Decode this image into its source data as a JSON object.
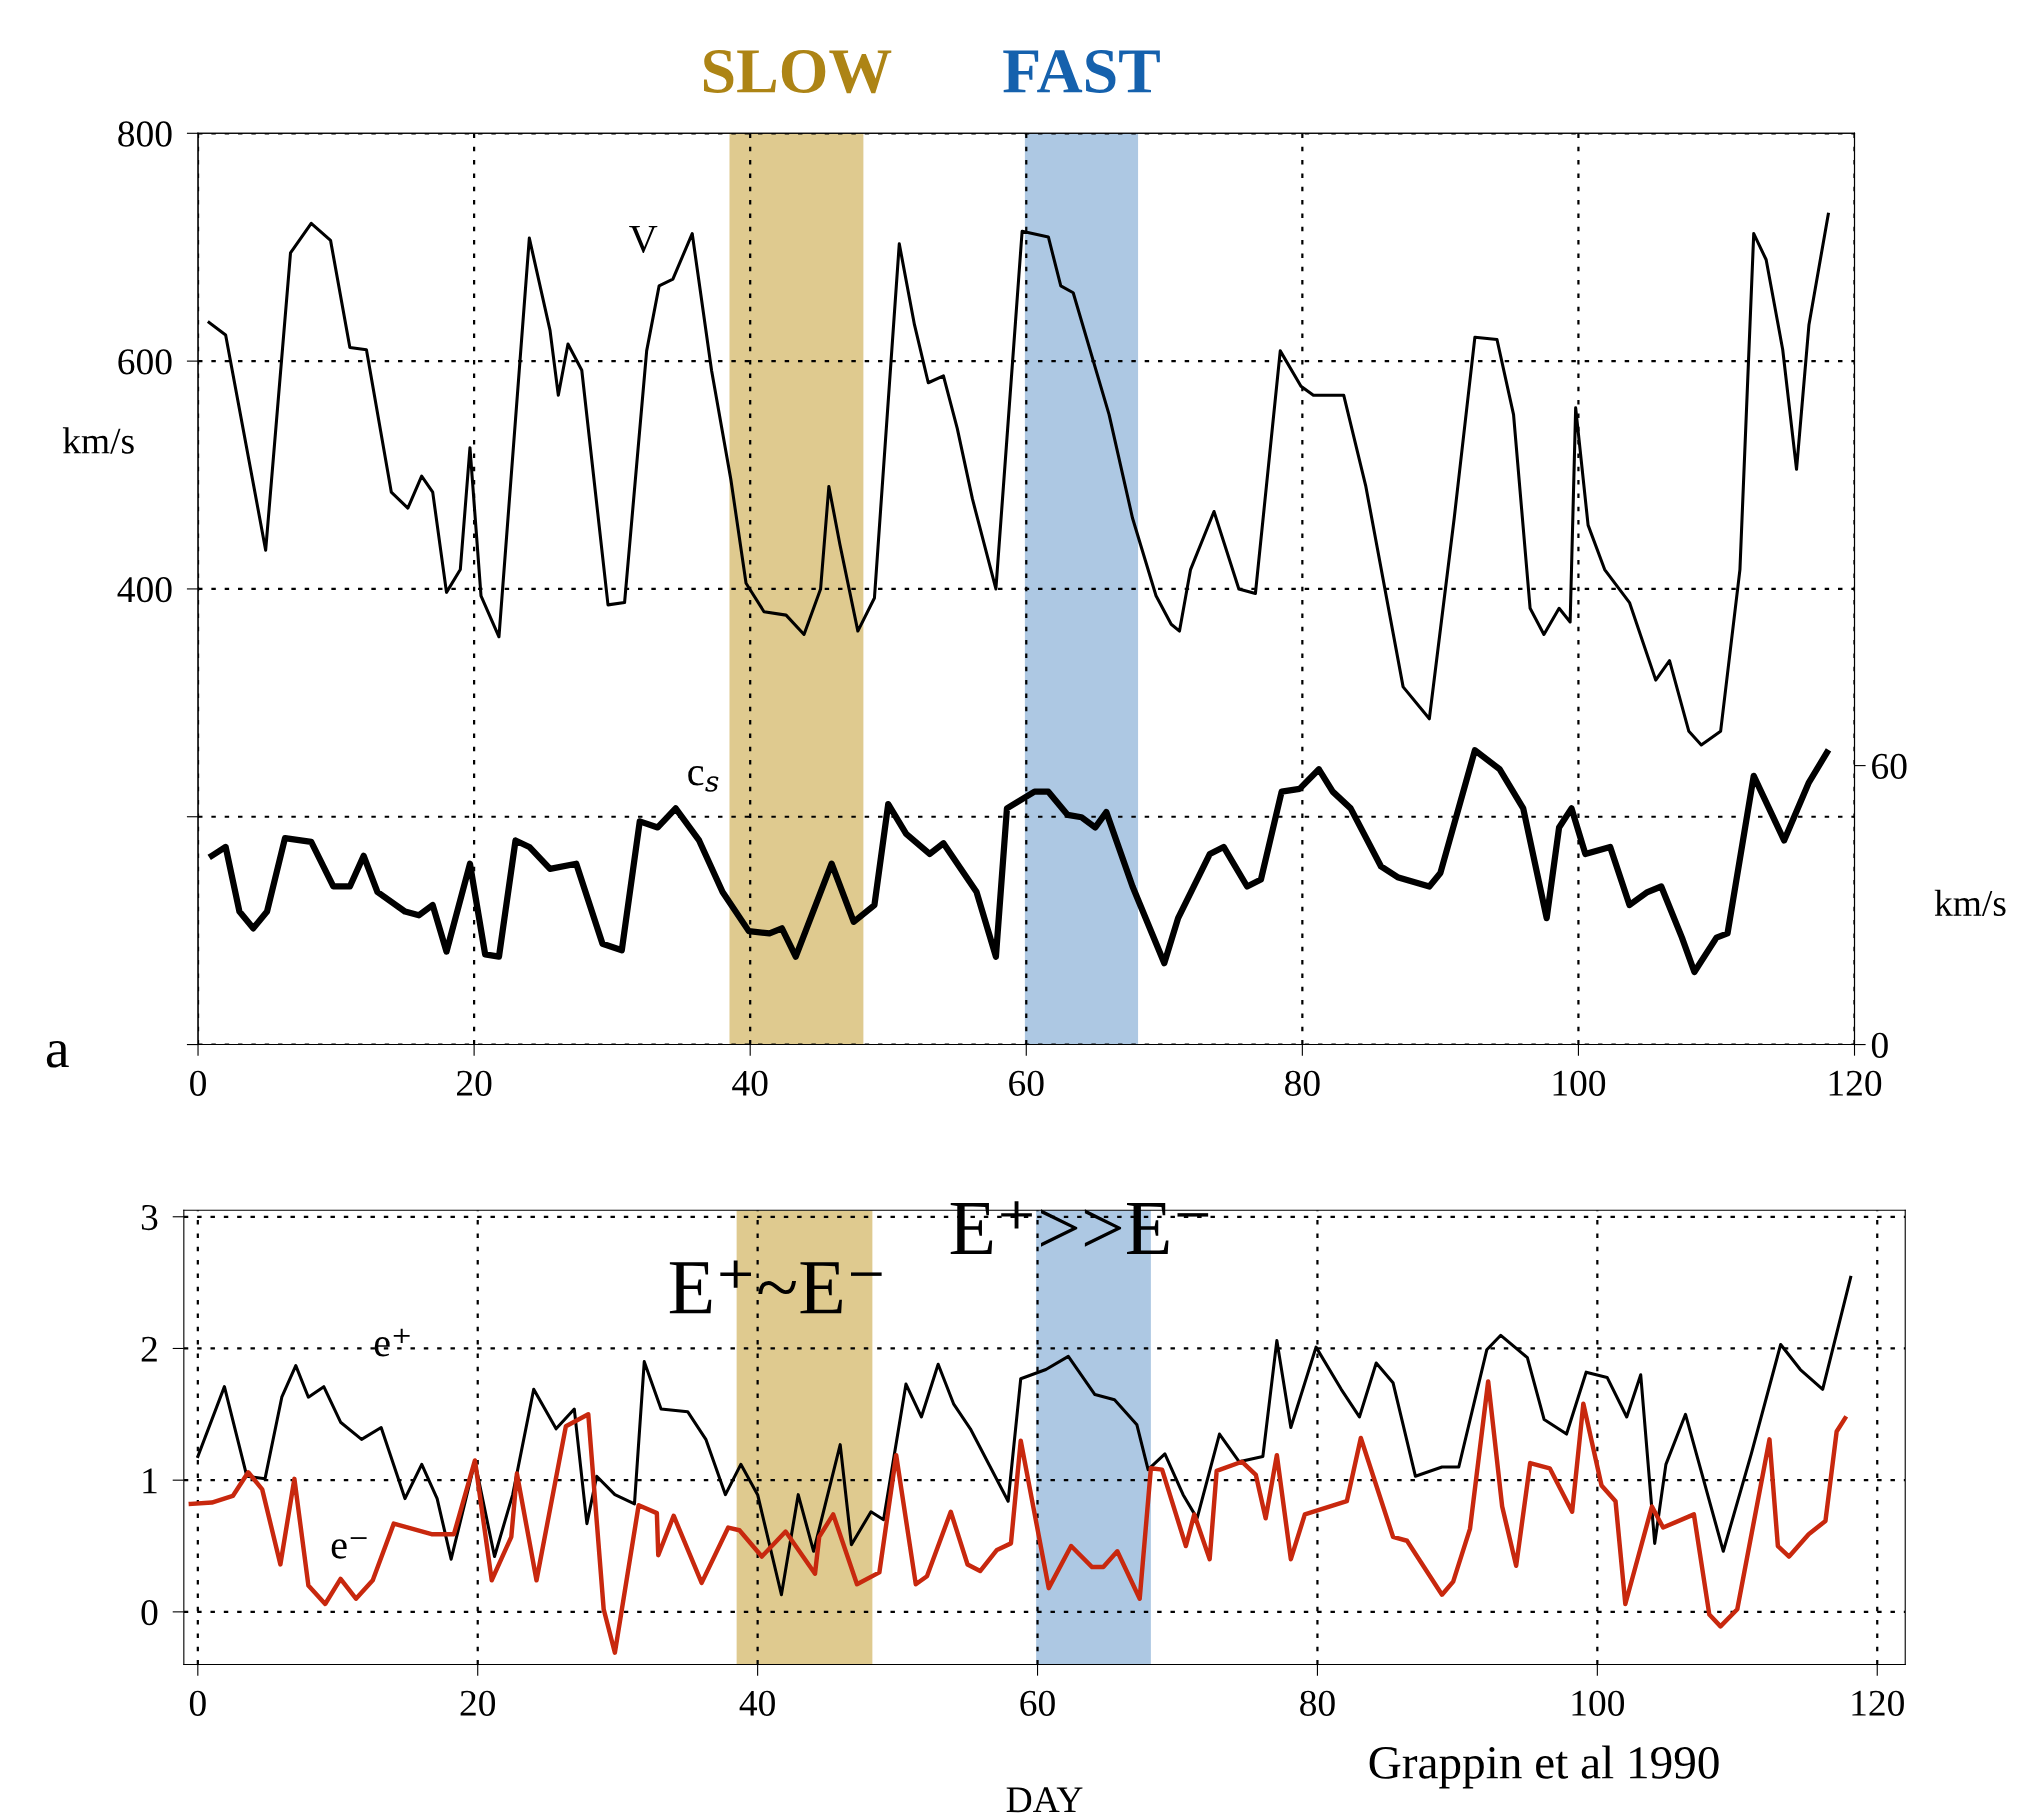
{
  "chart_data": [
    {
      "type": "line",
      "xlim": [
        0,
        120
      ],
      "xticks": [
        0,
        20,
        40,
        60,
        80,
        100,
        120
      ],
      "ylim": [
        0,
        800
      ],
      "yticks": [
        {
          "value": 0,
          "label": null
        },
        {
          "value": 200,
          "label": null
        },
        400,
        600,
        800
      ],
      "y2lim": [
        0,
        196
      ],
      "y2ticks": [
        0,
        60
      ],
      "ylabel": "km/s",
      "y2label": "km/s",
      "grid": true,
      "line_style": "solid",
      "bands": [
        {
          "axis": "x",
          "from": 38.5,
          "to": 48.2,
          "label": "SLOW",
          "color": "#dcc483"
        },
        {
          "axis": "x",
          "from": 59.9,
          "to": 68.1,
          "label": "FAST",
          "color": "#a4c2e0"
        }
      ],
      "annotations": [
        "a"
      ],
      "series": [
        {
          "name": "V",
          "color": "#000000",
          "x": [
            0.8,
            2,
            4.9,
            6.7,
            8.2,
            9.6,
            11,
            12.2,
            14,
            15.2,
            16.2,
            17,
            18,
            19,
            19.7,
            20.5,
            21.8,
            24,
            25.5,
            26.1,
            26.8,
            27.8,
            29.7,
            30.9,
            32.5,
            33.4,
            34.4,
            35.8,
            37.2,
            38.6,
            39.7,
            41,
            42.6,
            43.9,
            45.1,
            45.7,
            46.5,
            47.8,
            49,
            50.8,
            51.9,
            52.9,
            54,
            55,
            56.1,
            57.8,
            59.7,
            61.6,
            62.5,
            63.4,
            66,
            67.7,
            69.4,
            70.5,
            71.1,
            71.9,
            73.6,
            75.4,
            76.6,
            78.4,
            79.9,
            80.8,
            83,
            84.6,
            87.3,
            89.2,
            91,
            92.5,
            94.1,
            95.3,
            96.5,
            97.5,
            98.6,
            99.4,
            99.8,
            100.7,
            101.9,
            103.7,
            105.6,
            106.6,
            108,
            108.9,
            110.3,
            111.7,
            112.7,
            113.6,
            114.8,
            115.8,
            116.7,
            118.1
          ],
          "values": [
            634,
            623,
            434,
            695,
            721,
            706,
            612,
            610,
            485,
            471,
            499,
            485,
            397,
            417,
            524,
            394,
            358,
            708,
            627,
            570,
            615,
            592,
            386,
            388,
            609,
            666,
            672,
            712,
            592,
            496,
            405,
            380,
            377,
            360,
            400,
            490,
            439,
            363,
            392,
            703,
            632,
            581,
            587,
            541,
            479,
            400,
            714,
            709,
            666,
            660,
            553,
            462,
            394,
            369,
            363,
            417,
            468,
            400,
            396,
            609,
            578,
            570,
            570,
            490,
            314,
            286,
            462,
            621,
            619,
            553,
            383,
            360,
            383,
            371,
            559,
            456,
            417,
            388,
            320,
            337,
            275,
            263,
            275,
            417,
            712,
            689,
            610,
            505,
            632,
            729
          ]
        },
        {
          "name": "c$_{s}$",
          "color": "#000000",
          "axis": "y2",
          "x": [
            1,
            2,
            3,
            4,
            5,
            6.3,
            8.2,
            9.8,
            11,
            12,
            13,
            15,
            16,
            17,
            18,
            19.7,
            20.8,
            21.8,
            23,
            24,
            25.5,
            27.4,
            29.3,
            30.7,
            32,
            33.3,
            34.6,
            36.3,
            38,
            39.9,
            41.4,
            42.3,
            43.3,
            45.9,
            47.5,
            49,
            50,
            51.3,
            53,
            54,
            56.4,
            57.8,
            58.6,
            60.6,
            61.6,
            63,
            64,
            65,
            65.8,
            67.7,
            70,
            71,
            73.3,
            74.3,
            76,
            77,
            78.5,
            79.8,
            81.2,
            82.2,
            83.5,
            85.7,
            86.9,
            89.2,
            90,
            92.5,
            94.3,
            96,
            97.7,
            98.6,
            99.5,
            100.5,
            102.3,
            103.7,
            105,
            106,
            107.5,
            108.4,
            110,
            110.8,
            112.7,
            114.9,
            116.7,
            118
          ],
          "values": [
            40.6,
            42.5,
            28.6,
            25,
            28.6,
            44.4,
            43.6,
            34,
            34,
            40.6,
            32.8,
            28.6,
            27.8,
            30,
            20,
            38.9,
            19.4,
            18.9,
            43.9,
            42.5,
            37.8,
            38.9,
            21.7,
            20.3,
            48,
            46.7,
            50.8,
            43.9,
            32.8,
            24.4,
            23.9,
            25,
            18.9,
            38.9,
            26.4,
            30,
            51.7,
            45.3,
            41,
            43.3,
            32.8,
            18.9,
            50.8,
            54.4,
            54.4,
            49.4,
            48.9,
            46.7,
            50,
            34,
            17.5,
            27.2,
            41,
            42.5,
            34,
            35.5,
            54.4,
            55,
            59.2,
            54.4,
            50.8,
            38.3,
            36,
            34,
            36.9,
            63.3,
            59.2,
            50.8,
            27.2,
            46.7,
            50.8,
            41,
            42.5,
            30,
            32.8,
            34,
            23,
            15.6,
            23,
            23.9,
            57.8,
            43.9,
            56.4,
            62.8
          ]
        }
      ]
    },
    {
      "type": "line",
      "xlim": [
        -1,
        122
      ],
      "xticks": [
        0,
        20,
        40,
        60,
        80,
        100,
        120
      ],
      "ylim": [
        -0.4,
        3.05
      ],
      "yticks": [
        0,
        1,
        2,
        3
      ],
      "xlabel": "DAY",
      "grid": true,
      "line_style": "solid",
      "bands": [
        {
          "axis": "x",
          "from": 38.5,
          "to": 48.2,
          "color": "#dcc483"
        },
        {
          "axis": "x",
          "from": 59.9,
          "to": 68.1,
          "color": "#a4c2e0"
        }
      ],
      "annotations": [
        "E⁺~E⁻",
        "E⁺>>E⁻",
        "Grappin et al 1990"
      ],
      "series": [
        {
          "name": "e⁺",
          "color": "#000000",
          "x": [
            0,
            1.9,
            3.5,
            4.8,
            6,
            7,
            7.9,
            9,
            10.2,
            11.7,
            13.1,
            14.8,
            16,
            17.1,
            18.1,
            19.8,
            21.2,
            22.5,
            24,
            25.6,
            26.9,
            27.8,
            28.5,
            29.8,
            31.2,
            31.9,
            33.1,
            35,
            36.3,
            37.7,
            38.8,
            40,
            41.7,
            42.9,
            44,
            45.9,
            46.7,
            48.1,
            49,
            50.6,
            51.7,
            52.9,
            54,
            55.2,
            57.9,
            58.8,
            60.6,
            62.2,
            64.1,
            65.5,
            67.1,
            67.9,
            69.1,
            70.4,
            71.4,
            73,
            74.4,
            76.1,
            77.1,
            78.1,
            79.9,
            81.7,
            83,
            84.2,
            85.4,
            87,
            88.9,
            90.1,
            92.1,
            93.1,
            95,
            96.2,
            97.8,
            99.2,
            100.7,
            102.1,
            103.1,
            104.1,
            104.9,
            106.3,
            109,
            111,
            113.1,
            114.5,
            116.1,
            118.1
          ],
          "values": [
            1.18,
            1.71,
            1.03,
            1.01,
            1.63,
            1.87,
            1.63,
            1.71,
            1.44,
            1.31,
            1.4,
            0.86,
            1.12,
            0.86,
            0.4,
            1.14,
            0.42,
            0.89,
            1.69,
            1.39,
            1.54,
            0.67,
            1.03,
            0.89,
            0.82,
            1.9,
            1.54,
            1.52,
            1.31,
            0.89,
            1.12,
            0.89,
            0.13,
            0.89,
            0.46,
            1.27,
            0.51,
            0.76,
            0.7,
            1.73,
            1.48,
            1.88,
            1.58,
            1.39,
            0.84,
            1.77,
            1.84,
            1.94,
            1.65,
            1.61,
            1.42,
            1.08,
            1.2,
            0.89,
            0.71,
            1.35,
            1.14,
            1.18,
            2.06,
            1.4,
            2.01,
            1.69,
            1.48,
            1.89,
            1.74,
            1.03,
            1.1,
            1.1,
            1.99,
            2.1,
            1.93,
            1.46,
            1.35,
            1.82,
            1.78,
            1.48,
            1.8,
            0.52,
            1.12,
            1.5,
            0.46,
            1.2,
            2.03,
            1.84,
            1.69,
            2.54
          ]
        },
        {
          "name": "e⁻",
          "color": "#c8280e",
          "x": [
            -0.5,
            1,
            2.5,
            3.6,
            4.6,
            5.9,
            6.9,
            7.9,
            9.1,
            10.2,
            11.3,
            12.5,
            14,
            16.7,
            18.3,
            19.8,
            21,
            22.4,
            22.8,
            24.2,
            26.3,
            27.9,
            29,
            29.8,
            31.5,
            32.8,
            32.9,
            34,
            36,
            37.9,
            38.7,
            40.3,
            42,
            44.1,
            44.4,
            45.4,
            47.1,
            48.7,
            49.9,
            51.3,
            52.1,
            53.8,
            55,
            55.9,
            57.1,
            58.1,
            58.8,
            60.8,
            62.4,
            63.9,
            64.7,
            65.7,
            67.3,
            68.1,
            68.9,
            70.6,
            71.2,
            72.3,
            72.8,
            74.6,
            75.6,
            76.3,
            77.1,
            78.1,
            79.1,
            82.1,
            83.1,
            85.4,
            86.4,
            88.9,
            89.7,
            90.9,
            92.2,
            93.2,
            94.2,
            95.2,
            96.6,
            98.2,
            99,
            100.3,
            101.3,
            102,
            103.9,
            104.7,
            106.9,
            108,
            108.8,
            110,
            112.3,
            112.9,
            113.7,
            115.1,
            116.3,
            117.1,
            117.7
          ],
          "values": [
            0.82,
            0.83,
            0.88,
            1.06,
            0.93,
            0.36,
            1.01,
            0.2,
            0.06,
            0.25,
            0.1,
            0.24,
            0.67,
            0.59,
            0.59,
            1.15,
            0.24,
            0.57,
            1.05,
            0.24,
            1.41,
            1.5,
            0.02,
            -0.31,
            0.81,
            0.75,
            0.43,
            0.73,
            0.22,
            0.64,
            0.62,
            0.42,
            0.61,
            0.29,
            0.57,
            0.74,
            0.21,
            0.3,
            1.19,
            0.21,
            0.27,
            0.76,
            0.36,
            0.31,
            0.47,
            0.52,
            1.3,
            0.18,
            0.5,
            0.34,
            0.34,
            0.46,
            0.1,
            1.09,
            1.08,
            0.5,
            0.74,
            0.4,
            1.07,
            1.14,
            1.04,
            0.71,
            1.19,
            0.4,
            0.74,
            0.84,
            1.32,
            0.57,
            0.54,
            0.13,
            0.23,
            0.63,
            1.75,
            0.8,
            0.35,
            1.13,
            1.09,
            0.76,
            1.58,
            0.96,
            0.84,
            0.06,
            0.8,
            0.64,
            0.74,
            -0.02,
            -0.11,
            0.02,
            1.31,
            0.5,
            0.42,
            0.59,
            0.69,
            1.37,
            1.47
          ]
        }
      ]
    }
  ]
}
